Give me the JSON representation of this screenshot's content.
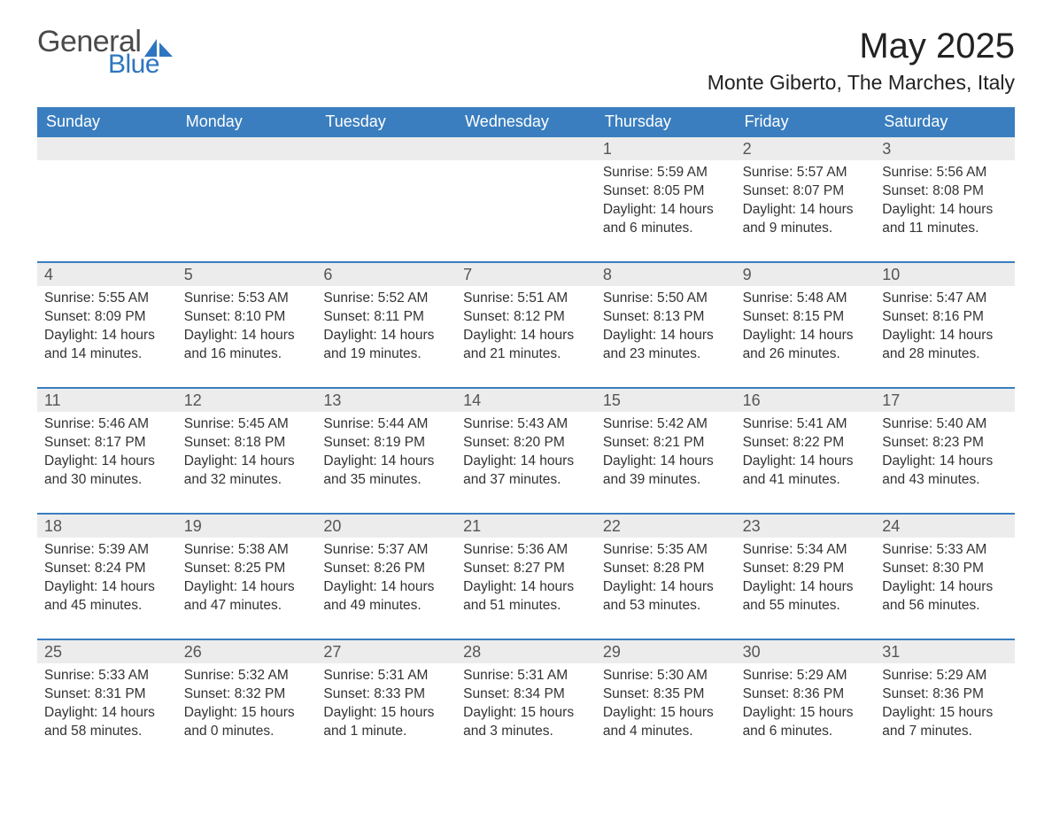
{
  "logo": {
    "text_general": "General",
    "text_blue": "Blue",
    "shape_color": "#2e75c0",
    "text_general_color": "#4a4a4a"
  },
  "title": "May 2025",
  "location": "Monte Giberto, The Marches, Italy",
  "colors": {
    "header_bg": "#3a7ebf",
    "header_text": "#ffffff",
    "daynum_bg": "#ececec",
    "daynum_text": "#555555",
    "rule": "#3a7ebf",
    "body_text": "#333333"
  },
  "weekdays": [
    "Sunday",
    "Monday",
    "Tuesday",
    "Wednesday",
    "Thursday",
    "Friday",
    "Saturday"
  ],
  "weeks": [
    [
      null,
      null,
      null,
      null,
      {
        "n": "1",
        "sunrise": "Sunrise: 5:59 AM",
        "sunset": "Sunset: 8:05 PM",
        "daylight": "Daylight: 14 hours and 6 minutes."
      },
      {
        "n": "2",
        "sunrise": "Sunrise: 5:57 AM",
        "sunset": "Sunset: 8:07 PM",
        "daylight": "Daylight: 14 hours and 9 minutes."
      },
      {
        "n": "3",
        "sunrise": "Sunrise: 5:56 AM",
        "sunset": "Sunset: 8:08 PM",
        "daylight": "Daylight: 14 hours and 11 minutes."
      }
    ],
    [
      {
        "n": "4",
        "sunrise": "Sunrise: 5:55 AM",
        "sunset": "Sunset: 8:09 PM",
        "daylight": "Daylight: 14 hours and 14 minutes."
      },
      {
        "n": "5",
        "sunrise": "Sunrise: 5:53 AM",
        "sunset": "Sunset: 8:10 PM",
        "daylight": "Daylight: 14 hours and 16 minutes."
      },
      {
        "n": "6",
        "sunrise": "Sunrise: 5:52 AM",
        "sunset": "Sunset: 8:11 PM",
        "daylight": "Daylight: 14 hours and 19 minutes."
      },
      {
        "n": "7",
        "sunrise": "Sunrise: 5:51 AM",
        "sunset": "Sunset: 8:12 PM",
        "daylight": "Daylight: 14 hours and 21 minutes."
      },
      {
        "n": "8",
        "sunrise": "Sunrise: 5:50 AM",
        "sunset": "Sunset: 8:13 PM",
        "daylight": "Daylight: 14 hours and 23 minutes."
      },
      {
        "n": "9",
        "sunrise": "Sunrise: 5:48 AM",
        "sunset": "Sunset: 8:15 PM",
        "daylight": "Daylight: 14 hours and 26 minutes."
      },
      {
        "n": "10",
        "sunrise": "Sunrise: 5:47 AM",
        "sunset": "Sunset: 8:16 PM",
        "daylight": "Daylight: 14 hours and 28 minutes."
      }
    ],
    [
      {
        "n": "11",
        "sunrise": "Sunrise: 5:46 AM",
        "sunset": "Sunset: 8:17 PM",
        "daylight": "Daylight: 14 hours and 30 minutes."
      },
      {
        "n": "12",
        "sunrise": "Sunrise: 5:45 AM",
        "sunset": "Sunset: 8:18 PM",
        "daylight": "Daylight: 14 hours and 32 minutes."
      },
      {
        "n": "13",
        "sunrise": "Sunrise: 5:44 AM",
        "sunset": "Sunset: 8:19 PM",
        "daylight": "Daylight: 14 hours and 35 minutes."
      },
      {
        "n": "14",
        "sunrise": "Sunrise: 5:43 AM",
        "sunset": "Sunset: 8:20 PM",
        "daylight": "Daylight: 14 hours and 37 minutes."
      },
      {
        "n": "15",
        "sunrise": "Sunrise: 5:42 AM",
        "sunset": "Sunset: 8:21 PM",
        "daylight": "Daylight: 14 hours and 39 minutes."
      },
      {
        "n": "16",
        "sunrise": "Sunrise: 5:41 AM",
        "sunset": "Sunset: 8:22 PM",
        "daylight": "Daylight: 14 hours and 41 minutes."
      },
      {
        "n": "17",
        "sunrise": "Sunrise: 5:40 AM",
        "sunset": "Sunset: 8:23 PM",
        "daylight": "Daylight: 14 hours and 43 minutes."
      }
    ],
    [
      {
        "n": "18",
        "sunrise": "Sunrise: 5:39 AM",
        "sunset": "Sunset: 8:24 PM",
        "daylight": "Daylight: 14 hours and 45 minutes."
      },
      {
        "n": "19",
        "sunrise": "Sunrise: 5:38 AM",
        "sunset": "Sunset: 8:25 PM",
        "daylight": "Daylight: 14 hours and 47 minutes."
      },
      {
        "n": "20",
        "sunrise": "Sunrise: 5:37 AM",
        "sunset": "Sunset: 8:26 PM",
        "daylight": "Daylight: 14 hours and 49 minutes."
      },
      {
        "n": "21",
        "sunrise": "Sunrise: 5:36 AM",
        "sunset": "Sunset: 8:27 PM",
        "daylight": "Daylight: 14 hours and 51 minutes."
      },
      {
        "n": "22",
        "sunrise": "Sunrise: 5:35 AM",
        "sunset": "Sunset: 8:28 PM",
        "daylight": "Daylight: 14 hours and 53 minutes."
      },
      {
        "n": "23",
        "sunrise": "Sunrise: 5:34 AM",
        "sunset": "Sunset: 8:29 PM",
        "daylight": "Daylight: 14 hours and 55 minutes."
      },
      {
        "n": "24",
        "sunrise": "Sunrise: 5:33 AM",
        "sunset": "Sunset: 8:30 PM",
        "daylight": "Daylight: 14 hours and 56 minutes."
      }
    ],
    [
      {
        "n": "25",
        "sunrise": "Sunrise: 5:33 AM",
        "sunset": "Sunset: 8:31 PM",
        "daylight": "Daylight: 14 hours and 58 minutes."
      },
      {
        "n": "26",
        "sunrise": "Sunrise: 5:32 AM",
        "sunset": "Sunset: 8:32 PM",
        "daylight": "Daylight: 15 hours and 0 minutes."
      },
      {
        "n": "27",
        "sunrise": "Sunrise: 5:31 AM",
        "sunset": "Sunset: 8:33 PM",
        "daylight": "Daylight: 15 hours and 1 minute."
      },
      {
        "n": "28",
        "sunrise": "Sunrise: 5:31 AM",
        "sunset": "Sunset: 8:34 PM",
        "daylight": "Daylight: 15 hours and 3 minutes."
      },
      {
        "n": "29",
        "sunrise": "Sunrise: 5:30 AM",
        "sunset": "Sunset: 8:35 PM",
        "daylight": "Daylight: 15 hours and 4 minutes."
      },
      {
        "n": "30",
        "sunrise": "Sunrise: 5:29 AM",
        "sunset": "Sunset: 8:36 PM",
        "daylight": "Daylight: 15 hours and 6 minutes."
      },
      {
        "n": "31",
        "sunrise": "Sunrise: 5:29 AM",
        "sunset": "Sunset: 8:36 PM",
        "daylight": "Daylight: 15 hours and 7 minutes."
      }
    ]
  ]
}
